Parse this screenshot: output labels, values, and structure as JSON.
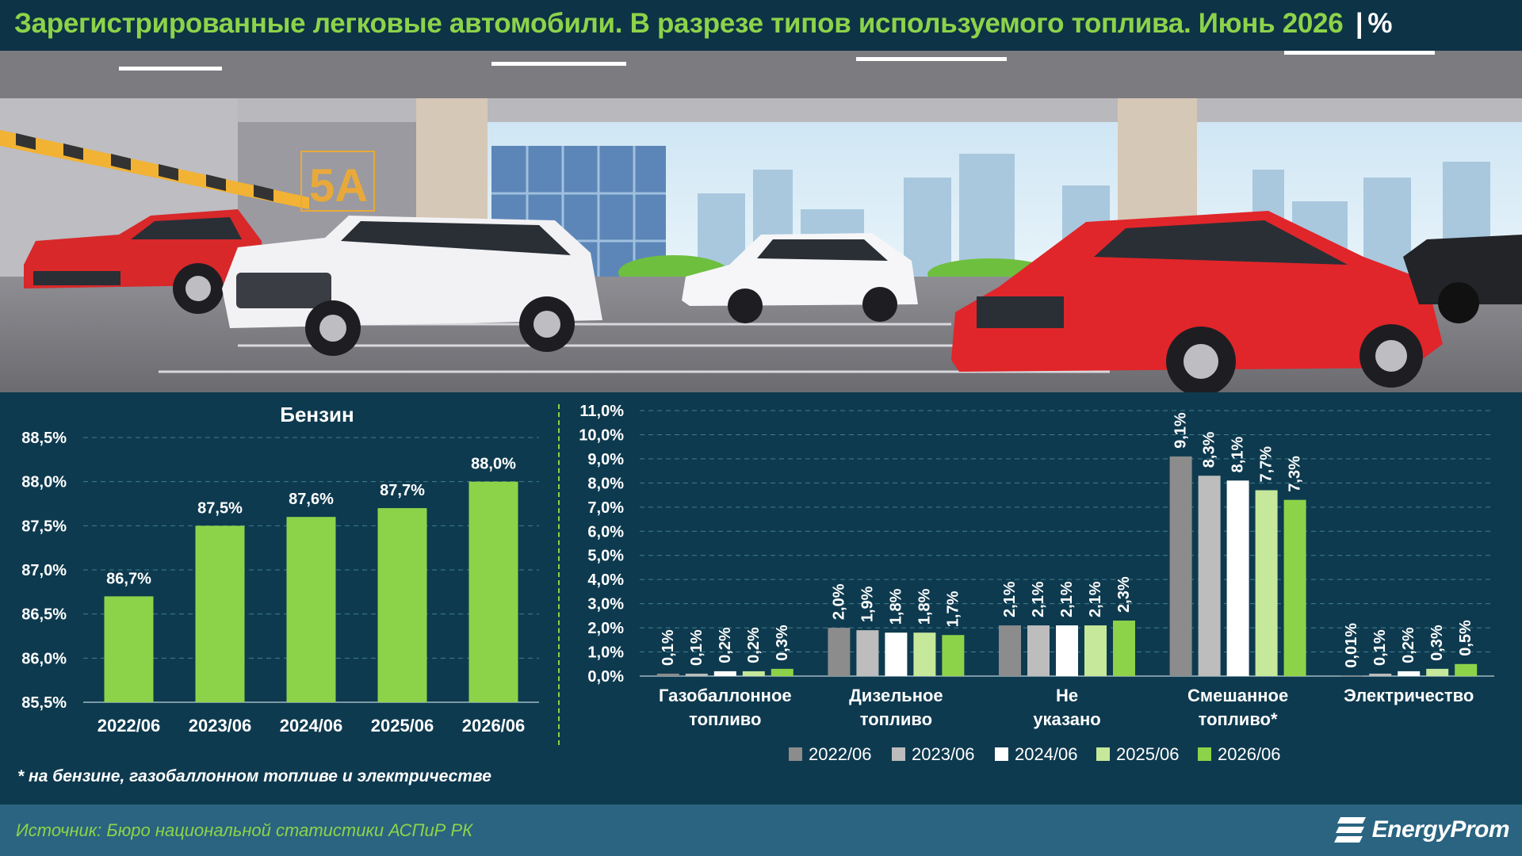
{
  "title": {
    "main": "Зарегистрированные легковые автомобили. В разрезе типов используемого топлива. Июнь 2026",
    "separator": "|",
    "unit": "%"
  },
  "illustration": {
    "sign": "5A"
  },
  "footnote": "* на бензине, газобаллонном топливе и электричестве",
  "source": "Источник: Бюро национальной статистики АСПиР РК",
  "logo": {
    "text": "EnergyProm",
    "icon": "energyprom-logo-icon"
  },
  "colors": {
    "background": "#0e3a4f",
    "accent": "#8dd34a",
    "footer": "#2a6480",
    "series": [
      "#8c8c8c",
      "#bdbdbd",
      "#ffffff",
      "#c5e89a",
      "#8dd34a"
    ]
  },
  "chart_data": [
    {
      "type": "bar",
      "title": "Бензин",
      "categories": [
        "2022/06",
        "2023/06",
        "2024/06",
        "2025/06",
        "2026/06"
      ],
      "values": [
        86.7,
        87.5,
        87.6,
        87.7,
        88.0
      ],
      "value_labels": [
        "86,7%",
        "87,5%",
        "87,6%",
        "87,7%",
        "88,0%"
      ],
      "ylim": [
        85.5,
        88.5
      ],
      "yticks": [
        85.5,
        86.0,
        86.5,
        87.0,
        87.5,
        88.0,
        88.5
      ],
      "ytick_labels": [
        "85,5%",
        "86,0%",
        "86,5%",
        "87,0%",
        "87,5%",
        "88,0%",
        "88,5%"
      ],
      "grid": true
    },
    {
      "type": "bar",
      "categories": [
        "Газобаллонное топливо",
        "Дизельное топливо",
        "Не указано",
        "Смешанное топливо*",
        "Электричество"
      ],
      "series": [
        {
          "name": "2022/06",
          "values": [
            0.1,
            2.0,
            2.1,
            9.1,
            0.01
          ],
          "labels": [
            "0,1%",
            "2,0%",
            "2,1%",
            "9,1%",
            "0,01%"
          ]
        },
        {
          "name": "2023/06",
          "values": [
            0.1,
            1.9,
            2.1,
            8.3,
            0.1
          ],
          "labels": [
            "0,1%",
            "1,9%",
            "2,1%",
            "8,3%",
            "0,1%"
          ]
        },
        {
          "name": "2024/06",
          "values": [
            0.2,
            1.8,
            2.1,
            8.1,
            0.2
          ],
          "labels": [
            "0,2%",
            "1,8%",
            "2,1%",
            "8,1%",
            "0,2%"
          ]
        },
        {
          "name": "2025/06",
          "values": [
            0.2,
            1.8,
            2.1,
            7.7,
            0.3
          ],
          "labels": [
            "0,2%",
            "1,8%",
            "2,1%",
            "7,7%",
            "0,3%"
          ]
        },
        {
          "name": "2026/06",
          "values": [
            0.3,
            1.7,
            2.3,
            7.3,
            0.5
          ],
          "labels": [
            "0,3%",
            "1,7%",
            "2,3%",
            "7,3%",
            "0,5%"
          ]
        }
      ],
      "ylim": [
        0,
        11
      ],
      "yticks": [
        0,
        1,
        2,
        3,
        4,
        5,
        6,
        7,
        8,
        9,
        10,
        11
      ],
      "ytick_labels": [
        "0,0%",
        "1,0%",
        "2,0%",
        "3,0%",
        "4,0%",
        "5,0%",
        "6,0%",
        "7,0%",
        "8,0%",
        "9,0%",
        "10,0%",
        "11,0%"
      ],
      "legend": "bottom",
      "grid": true
    }
  ]
}
